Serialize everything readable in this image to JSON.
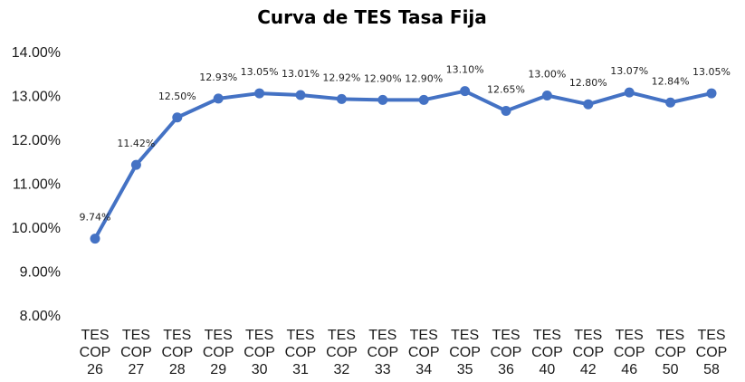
{
  "chart_data": {
    "type": "line",
    "title": "Curva de TES Tasa Fija",
    "xlabel": "",
    "ylabel": "",
    "ylim": [
      8,
      14
    ],
    "yticks": [
      "8.00%",
      "9.00%",
      "10.00%",
      "11.00%",
      "12.00%",
      "13.00%",
      "14.00%"
    ],
    "grid": false,
    "categories": [
      [
        "TES",
        "COP",
        "26"
      ],
      [
        "TES",
        "COP",
        "27"
      ],
      [
        "TES",
        "COP",
        "28"
      ],
      [
        "TES",
        "COP",
        "29"
      ],
      [
        "TES",
        "COP",
        "30"
      ],
      [
        "TES",
        "COP",
        "31"
      ],
      [
        "TES",
        "COP",
        "32"
      ],
      [
        "TES",
        "COP",
        "33"
      ],
      [
        "TES",
        "COP",
        "34"
      ],
      [
        "TES",
        "COP",
        "35"
      ],
      [
        "TES",
        "COP",
        "36"
      ],
      [
        "TES",
        "COP",
        "40"
      ],
      [
        "TES",
        "COP",
        "42"
      ],
      [
        "TES",
        "COP",
        "46"
      ],
      [
        "TES",
        "COP",
        "50"
      ],
      [
        "TES",
        "COP",
        "58"
      ]
    ],
    "values": [
      9.74,
      11.42,
      12.5,
      12.93,
      13.05,
      13.01,
      12.92,
      12.9,
      12.9,
      13.1,
      12.65,
      13.0,
      12.8,
      13.07,
      12.84,
      13.05
    ],
    "labels": [
      "9.74%",
      "11.42%",
      "12.50%",
      "12.93%",
      "13.05%",
      "13.01%",
      "12.92%",
      "12.90%",
      "12.90%",
      "13.10%",
      "12.65%",
      "13.00%",
      "12.80%",
      "13.07%",
      "12.84%",
      "13.05%"
    ],
    "line_color": "#4472C4"
  }
}
